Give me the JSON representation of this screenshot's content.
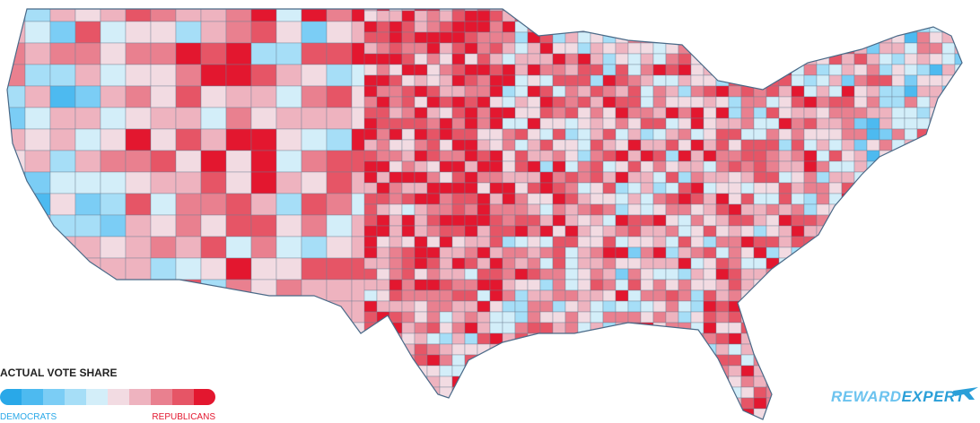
{
  "legend": {
    "title": "ACTUAL VOTE SHARE",
    "colors": [
      "#29a8e8",
      "#4dbaf0",
      "#7bcdf5",
      "#a6def7",
      "#d3eef9",
      "#f2dbe2",
      "#eeb3bf",
      "#e9808f",
      "#e65566",
      "#e3172f"
    ],
    "low_label": "DEMOCRATS",
    "high_label": "REPUBLICANS"
  },
  "brand": {
    "first": "REWARD",
    "second": "EXPERT"
  }
}
